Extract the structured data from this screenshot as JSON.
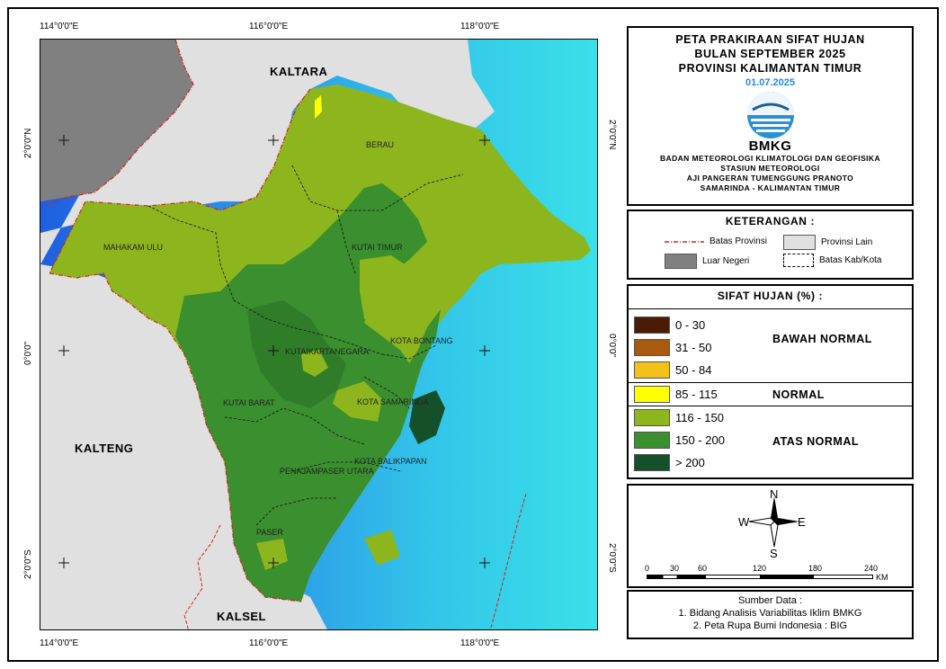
{
  "map": {
    "top_ticks": [
      "114°0'0\"E",
      "116°0'0\"E",
      "118°0'0\"E"
    ],
    "bottom_ticks": [
      "114°0'0\"E",
      "116°0'0\"E",
      "118°0'0\"E"
    ],
    "left_ticks": [
      "2°0'0\"N",
      "0°0'0\"",
      "2°0'0\"S"
    ],
    "right_ticks": [
      "2°0'0\"N",
      "0°0'0\"",
      "2°0'0\"S"
    ],
    "provinces": {
      "north": "KALTARA",
      "west": "KALTENG",
      "south": "KALSEL"
    },
    "regencies": [
      "BERAU",
      "MAHAKAM ULU",
      "KUTAI TIMUR",
      "KUTAIKARTANEGARA",
      "KOTA BONTANG",
      "KUTAI BARAT",
      "KOTA SAMARINDA",
      "KOTA BALIKPAPAN",
      "PENAJAMPASER UTARA",
      "PASER"
    ]
  },
  "title": {
    "line1": "PETA PRAKIRAAN SIFAT HUJAN",
    "line2": "BULAN SEPTEMBER 2025",
    "line3": "PROVINSI KALIMANTAN TIMUR",
    "date": "01.07.2025",
    "logo_text": "BMKG",
    "agency1": "BADAN METEOROLOGI KLIMATOLOGI DAN GEOFISIKA",
    "agency2": "STASIUN METEOROLOGI",
    "agency3": "AJI PANGERAN TUMENGGUNG PRANOTO",
    "agency4": "SAMARINDA - KALIMANTAN TIMUR"
  },
  "legend": {
    "title": "KETERANGAN :",
    "batas_provinsi": "Batas Provinsi",
    "provinsi_lain": "Provinsi Lain",
    "luar_negeri": "Luar Negeri",
    "batas_kab": "Batas Kab/Kota"
  },
  "sifat": {
    "title": "SIFAT HUJAN (%) :",
    "classes": [
      {
        "range": "0 - 30",
        "color": "#4a1c05"
      },
      {
        "range": "31 - 50",
        "color": "#a85a10"
      },
      {
        "range": "50 - 84",
        "color": "#f2c21a"
      },
      {
        "range": "85 - 115",
        "color": "#ffff00"
      },
      {
        "range": "116 - 150",
        "color": "#8db51e"
      },
      {
        "range": "150 - 200",
        "color": "#3a8f2e"
      },
      {
        "range": "> 200",
        "color": "#15502a"
      }
    ],
    "bawah": "BAWAH NORMAL",
    "normal": "NORMAL",
    "atas": "ATAS NORMAL"
  },
  "compass": {
    "n": "N",
    "s": "S",
    "e": "E",
    "w": "W"
  },
  "scale": {
    "ticks": [
      "0",
      "30",
      "60",
      "120",
      "180",
      "240"
    ],
    "unit": "KM"
  },
  "source": {
    "title": "Sumber Data :",
    "line1": "1. Bidang Analisis Variabilitas Iklim BMKG",
    "line2": "2. Peta Rupa Bumi Indonesia : BIG"
  },
  "colors": {
    "sea_light": "#3bd5e6",
    "sea_dark": "#1f5fe0",
    "other_province": "#e0e0e0",
    "abroad": "#808080",
    "province_border": "#d42020"
  }
}
